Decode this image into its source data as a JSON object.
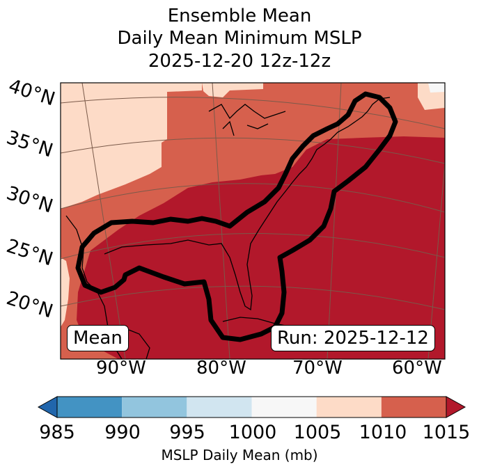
{
  "title": {
    "line1": "Ensemble Mean",
    "line2": "Daily Mean Minimum MSLP",
    "line3": "2025-12-20 12z-12z"
  },
  "map": {
    "lat_labels": [
      "40°N",
      "35°N",
      "30°N",
      "25°N",
      "20°N"
    ],
    "lon_labels": [
      "90°W",
      "80°W",
      "70°W",
      "60°W"
    ],
    "mean_box": "Mean",
    "run_box": "Run: 2025-12-12"
  },
  "colorbar": {
    "ticks": [
      "985",
      "990",
      "995",
      "1000",
      "1005",
      "1010",
      "1015"
    ],
    "colors": [
      "#4393c3",
      "#92c5de",
      "#d1e5f0",
      "#f7f7f7",
      "#fddbc7",
      "#d6604d"
    ],
    "under_color": "#2166ac",
    "over_color": "#b2182b",
    "label": "MSLP Daily Mean (mb)"
  },
  "colors": {
    "high": "#b2182b",
    "mid": "#d6604d",
    "low": "#fddbc7"
  }
}
